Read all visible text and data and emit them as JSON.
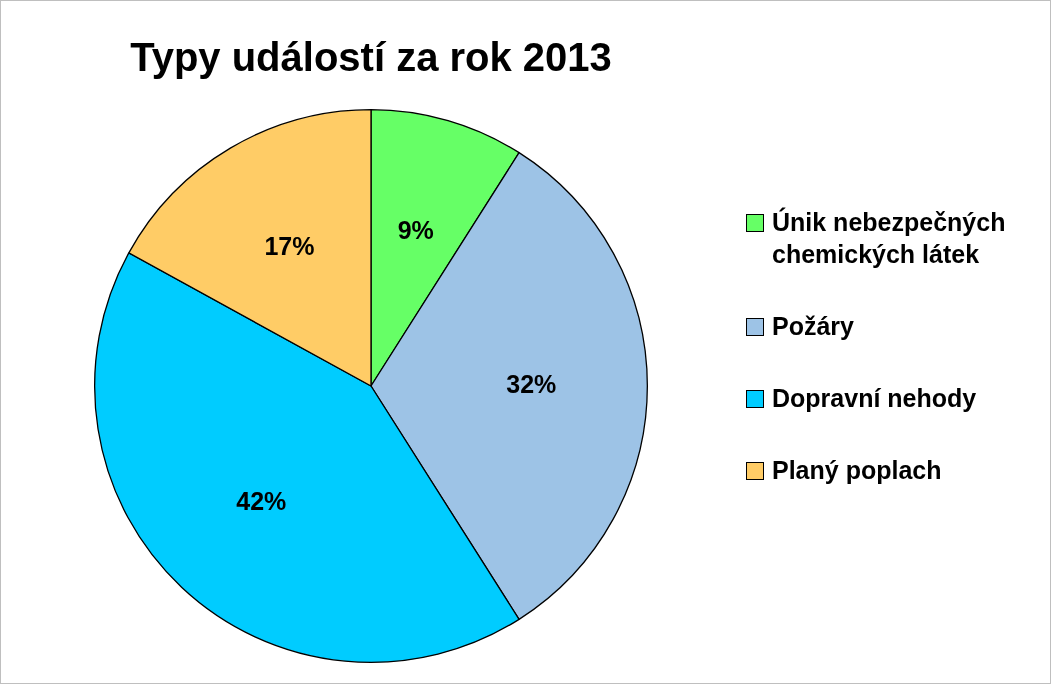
{
  "chart_data": {
    "type": "pie",
    "title": "Typy událostí za rok 2013",
    "categories": [
      "Únik nebezpečných chemických látek",
      "Požáry",
      "Dopravní nehody",
      "Planý poplach"
    ],
    "values": [
      9,
      32,
      42,
      17
    ],
    "colors": [
      "#66ff66",
      "#9dc3e6",
      "#00ccff",
      "#ffcc66"
    ],
    "value_labels": [
      "9%",
      "32%",
      "42%",
      "17%"
    ],
    "legend": "right"
  }
}
